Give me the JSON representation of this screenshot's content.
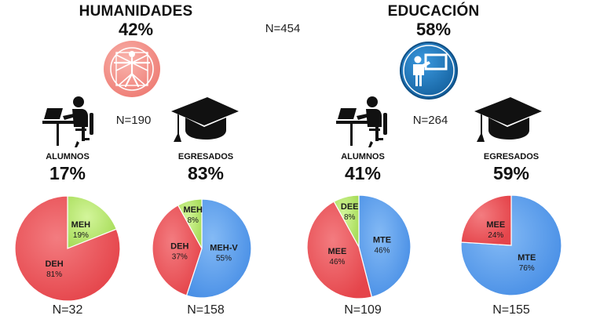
{
  "top": {
    "left_title": "HUMANIDADES",
    "left_pct": "42%",
    "total_n": "N=454",
    "right_title": "EDUCACIÓN",
    "right_pct": "58%"
  },
  "groups": {
    "hum_n": "N=190",
    "edu_n": "N=264"
  },
  "columns": [
    {
      "label": "ALUMNOS",
      "pct": "17%",
      "n": "N=32"
    },
    {
      "label": "EGRESADOS",
      "pct": "83%",
      "n": "N=158"
    },
    {
      "label": "ALUMNOS",
      "pct": "41%",
      "n": "N=109"
    },
    {
      "label": "EGRESADOS",
      "pct": "59%",
      "n": "N=155"
    }
  ],
  "colors": {
    "red": "#ee5a60",
    "green": "#bfe97a",
    "blue": "#5ea1f0",
    "icon_red": "#f48f88",
    "icon_blue": "#1d7bc0"
  },
  "chart_data": [
    {
      "type": "pie",
      "slices": [
        {
          "label": "MEH",
          "pct_label": "19%",
          "value": 19,
          "color": "#bfe97a"
        },
        {
          "label": "DEH",
          "pct_label": "81%",
          "value": 81,
          "color": "#ee5a60"
        }
      ]
    },
    {
      "type": "pie",
      "slices": [
        {
          "label": "MEH-V",
          "pct_label": "55%",
          "value": 55,
          "color": "#5ea1f0"
        },
        {
          "label": "DEH",
          "pct_label": "37%",
          "value": 37,
          "color": "#ee5a60"
        },
        {
          "label": "MEH",
          "pct_label": "8%",
          "value": 8,
          "color": "#bfe97a"
        }
      ]
    },
    {
      "type": "pie",
      "slices": [
        {
          "label": "MTE",
          "pct_label": "46%",
          "value": 46,
          "color": "#5ea1f0"
        },
        {
          "label": "MEE",
          "pct_label": "46%",
          "value": 46,
          "color": "#ee5a60"
        },
        {
          "label": "DEE",
          "pct_label": "8%",
          "value": 8,
          "color": "#bfe97a"
        }
      ]
    },
    {
      "type": "pie",
      "slices": [
        {
          "label": "MTE",
          "pct_label": "76%",
          "value": 76,
          "color": "#5ea1f0"
        },
        {
          "label": "MEE",
          "pct_label": "24%",
          "value": 24,
          "color": "#ee5a60"
        }
      ]
    }
  ]
}
